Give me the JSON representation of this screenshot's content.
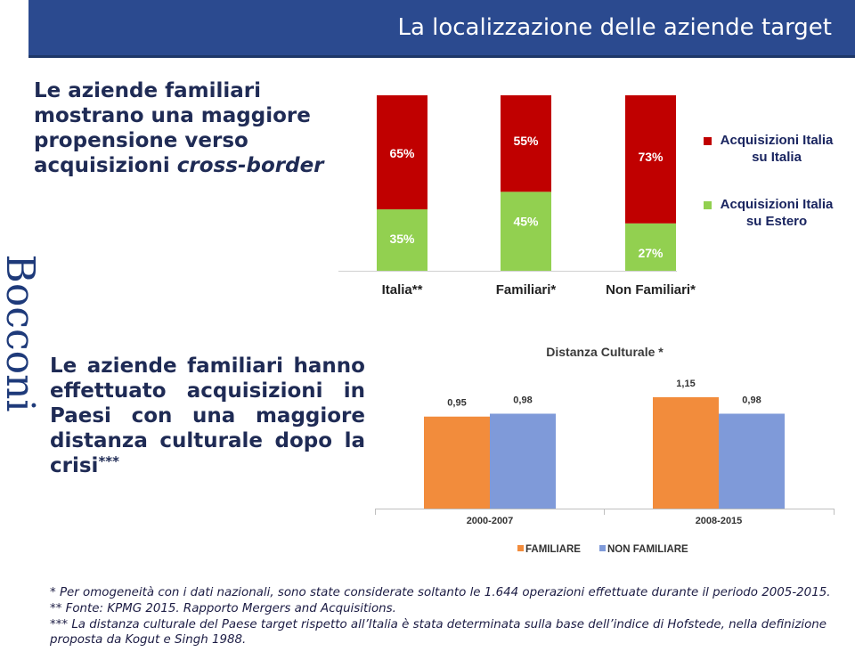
{
  "slide": {
    "title": "La localizzazione delle aziende target",
    "logo_text": "Bocconi",
    "statement1": {
      "part1": "Le aziende familiari mostrano una maggiore propensione verso acquisizioni ",
      "emph": "cross-border"
    },
    "statement2": {
      "text": "Le aziende familiari hanno effettuato acquisizioni in Paesi con una maggiore distanza culturale dopo la crisi",
      "stars": "***"
    },
    "footnotes": [
      "* Per omogeneità con i dati nazionali, sono state considerate soltanto le 1.644 operazioni effettuate durante il periodo 2005-2015.",
      "** Fonte: KPMG 2015. Rapporto Mergers and Acquisitions.",
      "*** La distanza culturale del Paese target rispetto all’Italia è stata determinata sulla base dell’indice di Hofstede, nella definizione proposta da Kogut e Singh  1988."
    ]
  },
  "chart_data": [
    {
      "type": "bar",
      "stacked": true,
      "percent": true,
      "title": "",
      "categories": [
        "Italia**",
        "Familiari*",
        "Non Familiari*"
      ],
      "series": [
        {
          "name": "Acquisizioni Italia su Estero",
          "values": [
            35,
            45,
            27
          ],
          "labels": [
            "35%",
            "45%",
            "27%"
          ],
          "color": "#92d050"
        },
        {
          "name": "Acquisizioni Italia su Italia",
          "values": [
            65,
            55,
            73
          ],
          "labels": [
            "65%",
            "55%",
            "73%"
          ],
          "color": "#c00000"
        }
      ],
      "legend": [
        {
          "line1": "Acquisizioni Italia",
          "line2": "su Italia",
          "color": "#c00000"
        },
        {
          "line1": "Acquisizioni Italia",
          "line2": "su Estero",
          "color": "#92d050"
        }
      ],
      "legend_position": "right",
      "ylim": [
        0,
        100
      ],
      "grid": false
    },
    {
      "type": "bar",
      "title": "Distanza Culturale *",
      "categories": [
        "2000-2007",
        "2008-2015"
      ],
      "series": [
        {
          "name": "FAMILIARE",
          "values": [
            0.95,
            1.15
          ],
          "labels": [
            "0,95",
            "1,15"
          ],
          "color": "#f28c3c"
        },
        {
          "name": "NON FAMILIARE",
          "values": [
            0.98,
            0.98
          ],
          "labels": [
            "0,98",
            "0,98"
          ],
          "color": "#7f9ad9"
        }
      ],
      "legend_position": "bottom",
      "ylim": [
        0,
        1.2
      ],
      "grid": false
    }
  ]
}
